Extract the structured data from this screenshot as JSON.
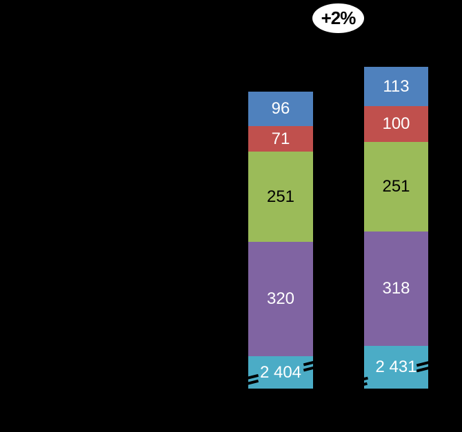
{
  "chart_data": {
    "type": "bar",
    "stacked": true,
    "orientation": "vertical",
    "background_color": "#000000",
    "legend": "none",
    "segment_order": "top-to-bottom",
    "axis_break": {
      "present": true,
      "location": "bottom teal segment of each bar (heights not to scale)"
    },
    "annotation": {
      "label": "+2%",
      "shape": "ellipse",
      "fill": "#FFFFFF",
      "text_color": "#000000"
    },
    "bars": [
      {
        "position": "left",
        "segments": [
          {
            "name": "blue",
            "value": 96,
            "label": "96",
            "color": "#4F81BD",
            "label_color": "#FFFFFF"
          },
          {
            "name": "red",
            "value": 71,
            "label": "71",
            "color": "#C0504D",
            "label_color": "#FFFFFF"
          },
          {
            "name": "green",
            "value": 251,
            "label": "251",
            "color": "#9BBB59",
            "label_color": "#000000"
          },
          {
            "name": "purple",
            "value": 320,
            "label": "320",
            "color": "#8064A2",
            "label_color": "#FFFFFF"
          },
          {
            "name": "teal",
            "value": 2404,
            "label": "2 404",
            "color": "#4BACC6",
            "label_color": "#FFFFFF"
          }
        ]
      },
      {
        "position": "right",
        "segments": [
          {
            "name": "blue",
            "value": 113,
            "label": "113",
            "color": "#4F81BD",
            "label_color": "#FFFFFF"
          },
          {
            "name": "red",
            "value": 100,
            "label": "100",
            "color": "#C0504D",
            "label_color": "#FFFFFF"
          },
          {
            "name": "green",
            "value": 251,
            "label": "251",
            "color": "#9BBB59",
            "label_color": "#000000"
          },
          {
            "name": "purple",
            "value": 318,
            "label": "318",
            "color": "#8064A2",
            "label_color": "#FFFFFF"
          },
          {
            "name": "teal",
            "value": 2431,
            "label": "2 431",
            "color": "#4BACC6",
            "label_color": "#FFFFFF"
          }
        ]
      }
    ]
  }
}
